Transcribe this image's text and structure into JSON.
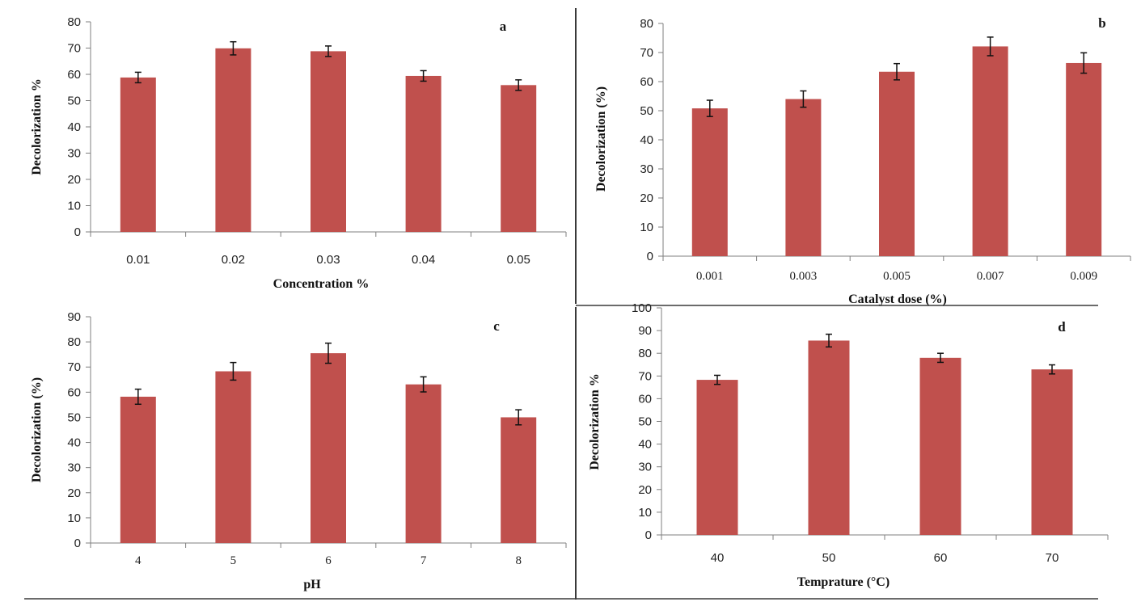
{
  "colors": {
    "bar": "#c0504d",
    "axis": "#7f7f7f",
    "error_bar": "#111111",
    "separator": "#3a3a3a"
  },
  "chart_data": [
    {
      "type": "bar",
      "panel_label": "a",
      "categories": [
        "0.01",
        "0.02",
        "0.03",
        "0.04",
        "0.05"
      ],
      "values": [
        58.8,
        69.9,
        68.8,
        59.4,
        55.9
      ],
      "errors": [
        2,
        2.5,
        2,
        2,
        2
      ],
      "xlabel": "Concentration  %",
      "ylabel": "Decolorization  %",
      "ylim": [
        0,
        80
      ],
      "yticks": [
        "0",
        "10",
        "20",
        "30",
        "40",
        "50",
        "60",
        "70",
        "80"
      ]
    },
    {
      "type": "bar",
      "panel_label": "b",
      "categories": [
        "0.001",
        "0.003",
        "0.005",
        "0.007",
        "0.009"
      ],
      "values": [
        50.8,
        54.0,
        63.4,
        72.1,
        66.4
      ],
      "errors": [
        2.8,
        2.8,
        2.8,
        3.2,
        3.5
      ],
      "xlabel": "Catalyst dose (%)",
      "ylabel": "Decolorization (%)",
      "ylim": [
        0,
        80
      ],
      "yticks": [
        "0",
        "10",
        "20",
        "30",
        "40",
        "50",
        "60",
        "70",
        "80"
      ]
    },
    {
      "type": "bar",
      "panel_label": "c",
      "categories": [
        "4",
        "5",
        "6",
        "7",
        "8"
      ],
      "values": [
        58.2,
        68.3,
        75.5,
        63.1,
        50.0
      ],
      "errors": [
        3,
        3.5,
        4,
        3,
        3
      ],
      "xlabel": "pH",
      "ylabel": "Decolorization (%)",
      "ylim": [
        0,
        90
      ],
      "yticks": [
        "0",
        "10",
        "20",
        "30",
        "40",
        "50",
        "60",
        "70",
        "80",
        "90"
      ]
    },
    {
      "type": "bar",
      "panel_label": "d",
      "categories": [
        "40",
        "50",
        "60",
        "70"
      ],
      "values": [
        68.3,
        85.6,
        78.0,
        72.9
      ],
      "errors": [
        2,
        2.8,
        2,
        2
      ],
      "xlabel": "Temprature  (°C)",
      "ylabel": "Decolorization  %",
      "ylim": [
        0,
        100
      ],
      "yticks": [
        "0",
        "10",
        "20",
        "30",
        "40",
        "50",
        "60",
        "70",
        "80",
        "90",
        "100"
      ]
    }
  ]
}
